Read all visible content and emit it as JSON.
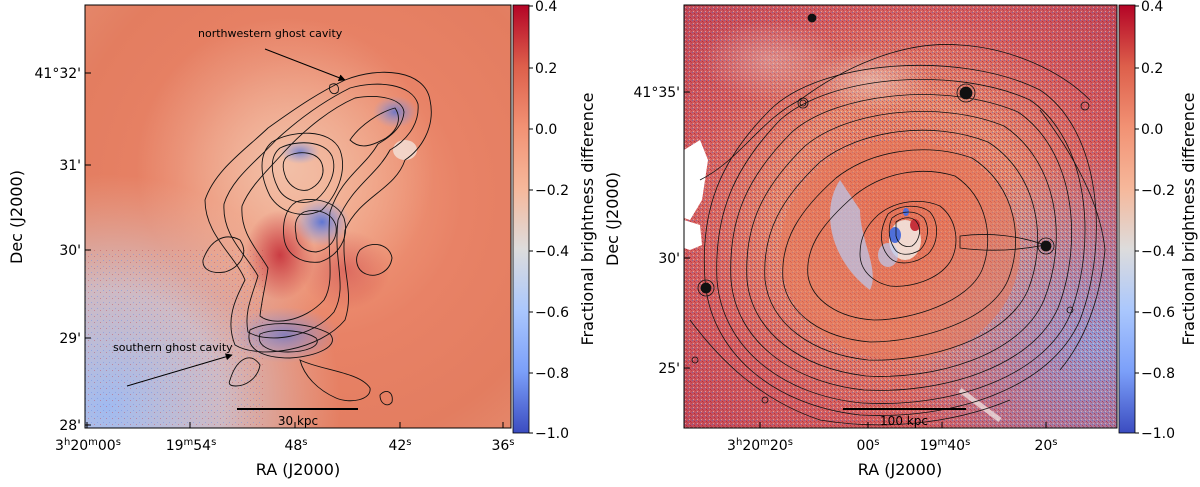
{
  "panels": [
    {
      "id": "left",
      "image": {
        "xlabel": "RA (J2000)",
        "ylabel": "Dec (J2000)"
      },
      "xticks": [
        {
          "label": "3h20m00s"
        },
        {
          "label": "19m54s"
        },
        {
          "label": "48s"
        },
        {
          "label": "42s"
        },
        {
          "label": "36s"
        }
      ],
      "yticks": [
        {
          "label": "41°32'"
        },
        {
          "label": "31'"
        },
        {
          "label": "30'"
        },
        {
          "label": "29'"
        },
        {
          "label": "28'"
        }
      ],
      "annotations": [
        {
          "text": "northwestern ghost cavity"
        },
        {
          "text": "southern ghost cavity"
        }
      ],
      "scalebar": {
        "text": "30 kpc"
      },
      "colorbar": {
        "label": "Fractional brightness difference",
        "range": [
          -1.0,
          0.4
        ],
        "ticks": [
          "0.4",
          "0.2",
          "0.0",
          "−0.2",
          "−0.4",
          "−0.6",
          "−0.8",
          "−1.0"
        ]
      }
    },
    {
      "id": "right",
      "image": {
        "xlabel": "RA (J2000)",
        "ylabel": "Dec (J2000)"
      },
      "xticks": [
        {
          "label": "3h20m20s"
        },
        {
          "label": "00s"
        },
        {
          "label": "19m40s"
        },
        {
          "label": "20s"
        }
      ],
      "yticks": [
        {
          "label": "41°35'"
        },
        {
          "label": "30'"
        },
        {
          "label": "25'"
        }
      ],
      "scalebar": {
        "text": "100 kpc"
      },
      "colorbar": {
        "label": "Fractional brightness difference",
        "range": [
          -1.0,
          0.4
        ],
        "ticks": [
          "0.4",
          "0.2",
          "0.0",
          "−0.2",
          "−0.4",
          "−0.6",
          "−0.8",
          "−1.0"
        ]
      }
    }
  ],
  "colors": {
    "positive": "#b2182b",
    "zero": "#f7f7f7",
    "negative": "#2166ac",
    "contour": "#111111"
  },
  "chart_data": [
    {
      "type": "heatmap",
      "xlabel": "RA (J2000)",
      "ylabel": "Dec (J2000)",
      "x_tick_labels": [
        "3h20m00s",
        "19m54s",
        "48s",
        "42s",
        "36s"
      ],
      "y_tick_labels": [
        "41°32'",
        "31'",
        "30'",
        "29'",
        "28'"
      ],
      "colorbar_label": "Fractional brightness difference",
      "colorbar_range": [
        -1.0,
        0.4
      ],
      "colormap": "coolwarm",
      "overlay": "contours",
      "annotations": [
        "northwestern ghost cavity",
        "southern ghost cavity",
        "30 kpc"
      ]
    },
    {
      "type": "heatmap",
      "xlabel": "RA (J2000)",
      "ylabel": "Dec (J2000)",
      "x_tick_labels": [
        "3h20m20s",
        "00s",
        "19m40s",
        "20s"
      ],
      "y_tick_labels": [
        "41°35'",
        "30'",
        "25'"
      ],
      "colorbar_label": "Fractional brightness difference",
      "colorbar_range": [
        -1.0,
        0.4
      ],
      "colormap": "coolwarm",
      "overlay": "contours",
      "annotations": [
        "100 kpc"
      ]
    }
  ]
}
